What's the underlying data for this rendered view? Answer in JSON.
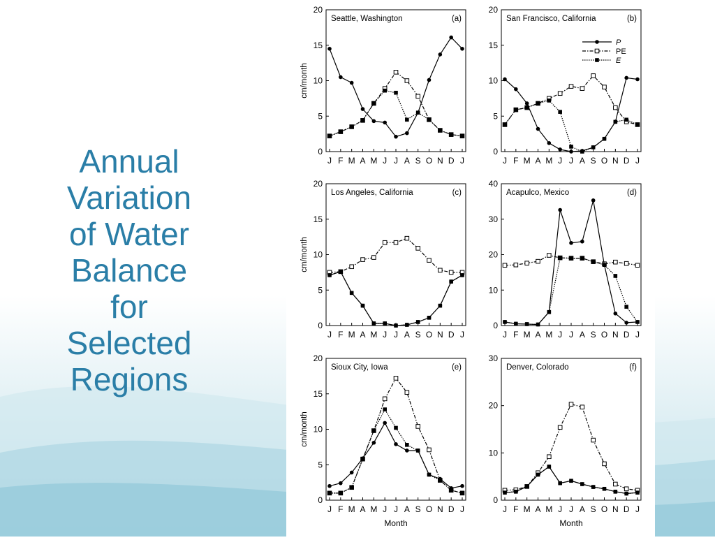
{
  "slide": {
    "title": "Annual\nVariation\nof Water\nBalance\nfor\nSelected\nRegions"
  },
  "legend": {
    "entries": [
      "P",
      "PE",
      "E"
    ]
  },
  "common": {
    "months": [
      "J",
      "F",
      "M",
      "A",
      "M",
      "J",
      "J",
      "A",
      "S",
      "O",
      "N",
      "D",
      "J"
    ],
    "ylabel": "cm/month",
    "xlabel": "Month"
  },
  "chart_data": [
    {
      "type": "line",
      "title": "Seattle, Washington",
      "letter": "(a)",
      "ylim": [
        0,
        20
      ],
      "yticks": [
        0,
        5,
        10,
        15,
        20
      ],
      "series": [
        {
          "name": "P",
          "values": [
            14.5,
            10.5,
            9.7,
            6,
            4.3,
            4.1,
            2.1,
            2.6,
            5.5,
            10.1,
            13.7,
            16.1,
            14.5
          ]
        },
        {
          "name": "PE",
          "values": [
            2.2,
            2.8,
            3.5,
            4.4,
            6.8,
            8.9,
            11.2,
            10,
            7.8,
            4.5,
            3,
            2.4,
            2.2
          ]
        },
        {
          "name": "E",
          "values": [
            2.2,
            2.8,
            3.5,
            4.4,
            6.8,
            8.6,
            8.3,
            4.5,
            5.5,
            4.5,
            3,
            2.4,
            2.2
          ]
        }
      ]
    },
    {
      "type": "line",
      "title": "San Francisco, California",
      "letter": "(b)",
      "ylim": [
        0,
        20
      ],
      "yticks": [
        0,
        5,
        10,
        15,
        20
      ],
      "series": [
        {
          "name": "P",
          "values": [
            10.2,
            8.8,
            6.8,
            3.2,
            1.2,
            0.3,
            0,
            0.1,
            0.6,
            1.8,
            4.2,
            10.4,
            10.2
          ]
        },
        {
          "name": "PE",
          "values": [
            3.8,
            5.9,
            6.2,
            6.8,
            7.5,
            8.2,
            9.2,
            8.9,
            10.7,
            9.1,
            6.2,
            4.2,
            3.8
          ]
        },
        {
          "name": "E",
          "values": [
            3.8,
            5.9,
            6.2,
            6.8,
            7.2,
            5.6,
            0.7,
            0,
            0.6,
            1.8,
            4.2,
            4.5,
            3.8
          ]
        }
      ]
    },
    {
      "type": "line",
      "title": "Los Angeles, California",
      "letter": "(c)",
      "ylim": [
        0,
        20
      ],
      "yticks": [
        0,
        5,
        10,
        15,
        20
      ],
      "series": [
        {
          "name": "P",
          "values": [
            7.1,
            7.6,
            4.6,
            2.8,
            0.3,
            0.3,
            0,
            0.1,
            0.5,
            1.1,
            2.8,
            6.2,
            7.1
          ]
        },
        {
          "name": "PE",
          "values": [
            7.5,
            7.6,
            8.3,
            9.3,
            9.6,
            11.7,
            11.7,
            12.3,
            10.9,
            9.2,
            7.8,
            7.5,
            7.5
          ]
        },
        {
          "name": "E",
          "values": [
            7.1,
            7.6,
            4.6,
            2.8,
            0.3,
            0.3,
            0,
            0.1,
            0.5,
            1.1,
            2.8,
            6.2,
            7.1
          ]
        }
      ]
    },
    {
      "type": "line",
      "title": "Acapulco, Mexico",
      "letter": "(d)",
      "ylim": [
        0,
        40
      ],
      "yticks": [
        0,
        10,
        20,
        30,
        40
      ],
      "series": [
        {
          "name": "P",
          "values": [
            1,
            0.5,
            0.4,
            0.3,
            3.8,
            32.6,
            23.3,
            23.7,
            35.3,
            17.1,
            3.4,
            0.8,
            1
          ]
        },
        {
          "name": "PE",
          "values": [
            17,
            17.1,
            17.6,
            18.1,
            19.8,
            19.1,
            19,
            19,
            18,
            17.4,
            17.9,
            17.5,
            17
          ]
        },
        {
          "name": "E",
          "values": [
            1,
            0.5,
            0.4,
            0.3,
            3.8,
            19.1,
            19,
            19,
            18,
            17.1,
            14,
            5.3,
            1
          ]
        }
      ]
    },
    {
      "type": "line",
      "title": "Sioux City,  Iowa",
      "letter": "(e)",
      "xlabel": "Month",
      "ylim": [
        0,
        20
      ],
      "yticks": [
        0,
        5,
        10,
        15,
        20
      ],
      "series": [
        {
          "name": "P",
          "values": [
            2,
            2.4,
            3.9,
            5.9,
            8.1,
            10.9,
            7.9,
            7,
            7,
            3.6,
            3,
            1.7,
            2
          ]
        },
        {
          "name": "PE",
          "values": [
            1,
            1,
            1.8,
            5.8,
            9.8,
            14.3,
            17.2,
            15.2,
            10.4,
            7.1,
            2.8,
            1.4,
            1
          ]
        },
        {
          "name": "E",
          "values": [
            1,
            1,
            1.8,
            5.8,
            9.8,
            12.8,
            10.2,
            7.8,
            7,
            3.6,
            2.8,
            1.4,
            1
          ]
        }
      ]
    },
    {
      "type": "line",
      "title": "Denver, Colorado",
      "letter": "(f)",
      "xlabel": "Month",
      "ylim": [
        0,
        30
      ],
      "yticks": [
        0,
        10,
        20,
        30
      ],
      "series": [
        {
          "name": "P",
          "values": [
            1.6,
            1.8,
            2.9,
            5.4,
            7.1,
            3.6,
            4.1,
            3.4,
            2.8,
            2.4,
            1.8,
            1.4,
            1.6
          ]
        },
        {
          "name": "PE",
          "values": [
            2.1,
            2.2,
            2.9,
            5.8,
            9.2,
            15.4,
            20.3,
            19.7,
            12.7,
            7.7,
            3.4,
            2.4,
            2.1
          ]
        },
        {
          "name": "E",
          "values": [
            1.6,
            1.8,
            2.9,
            5.4,
            7.1,
            3.6,
            4.1,
            3.4,
            2.8,
            2.4,
            1.8,
            1.4,
            1.6
          ]
        }
      ]
    }
  ]
}
